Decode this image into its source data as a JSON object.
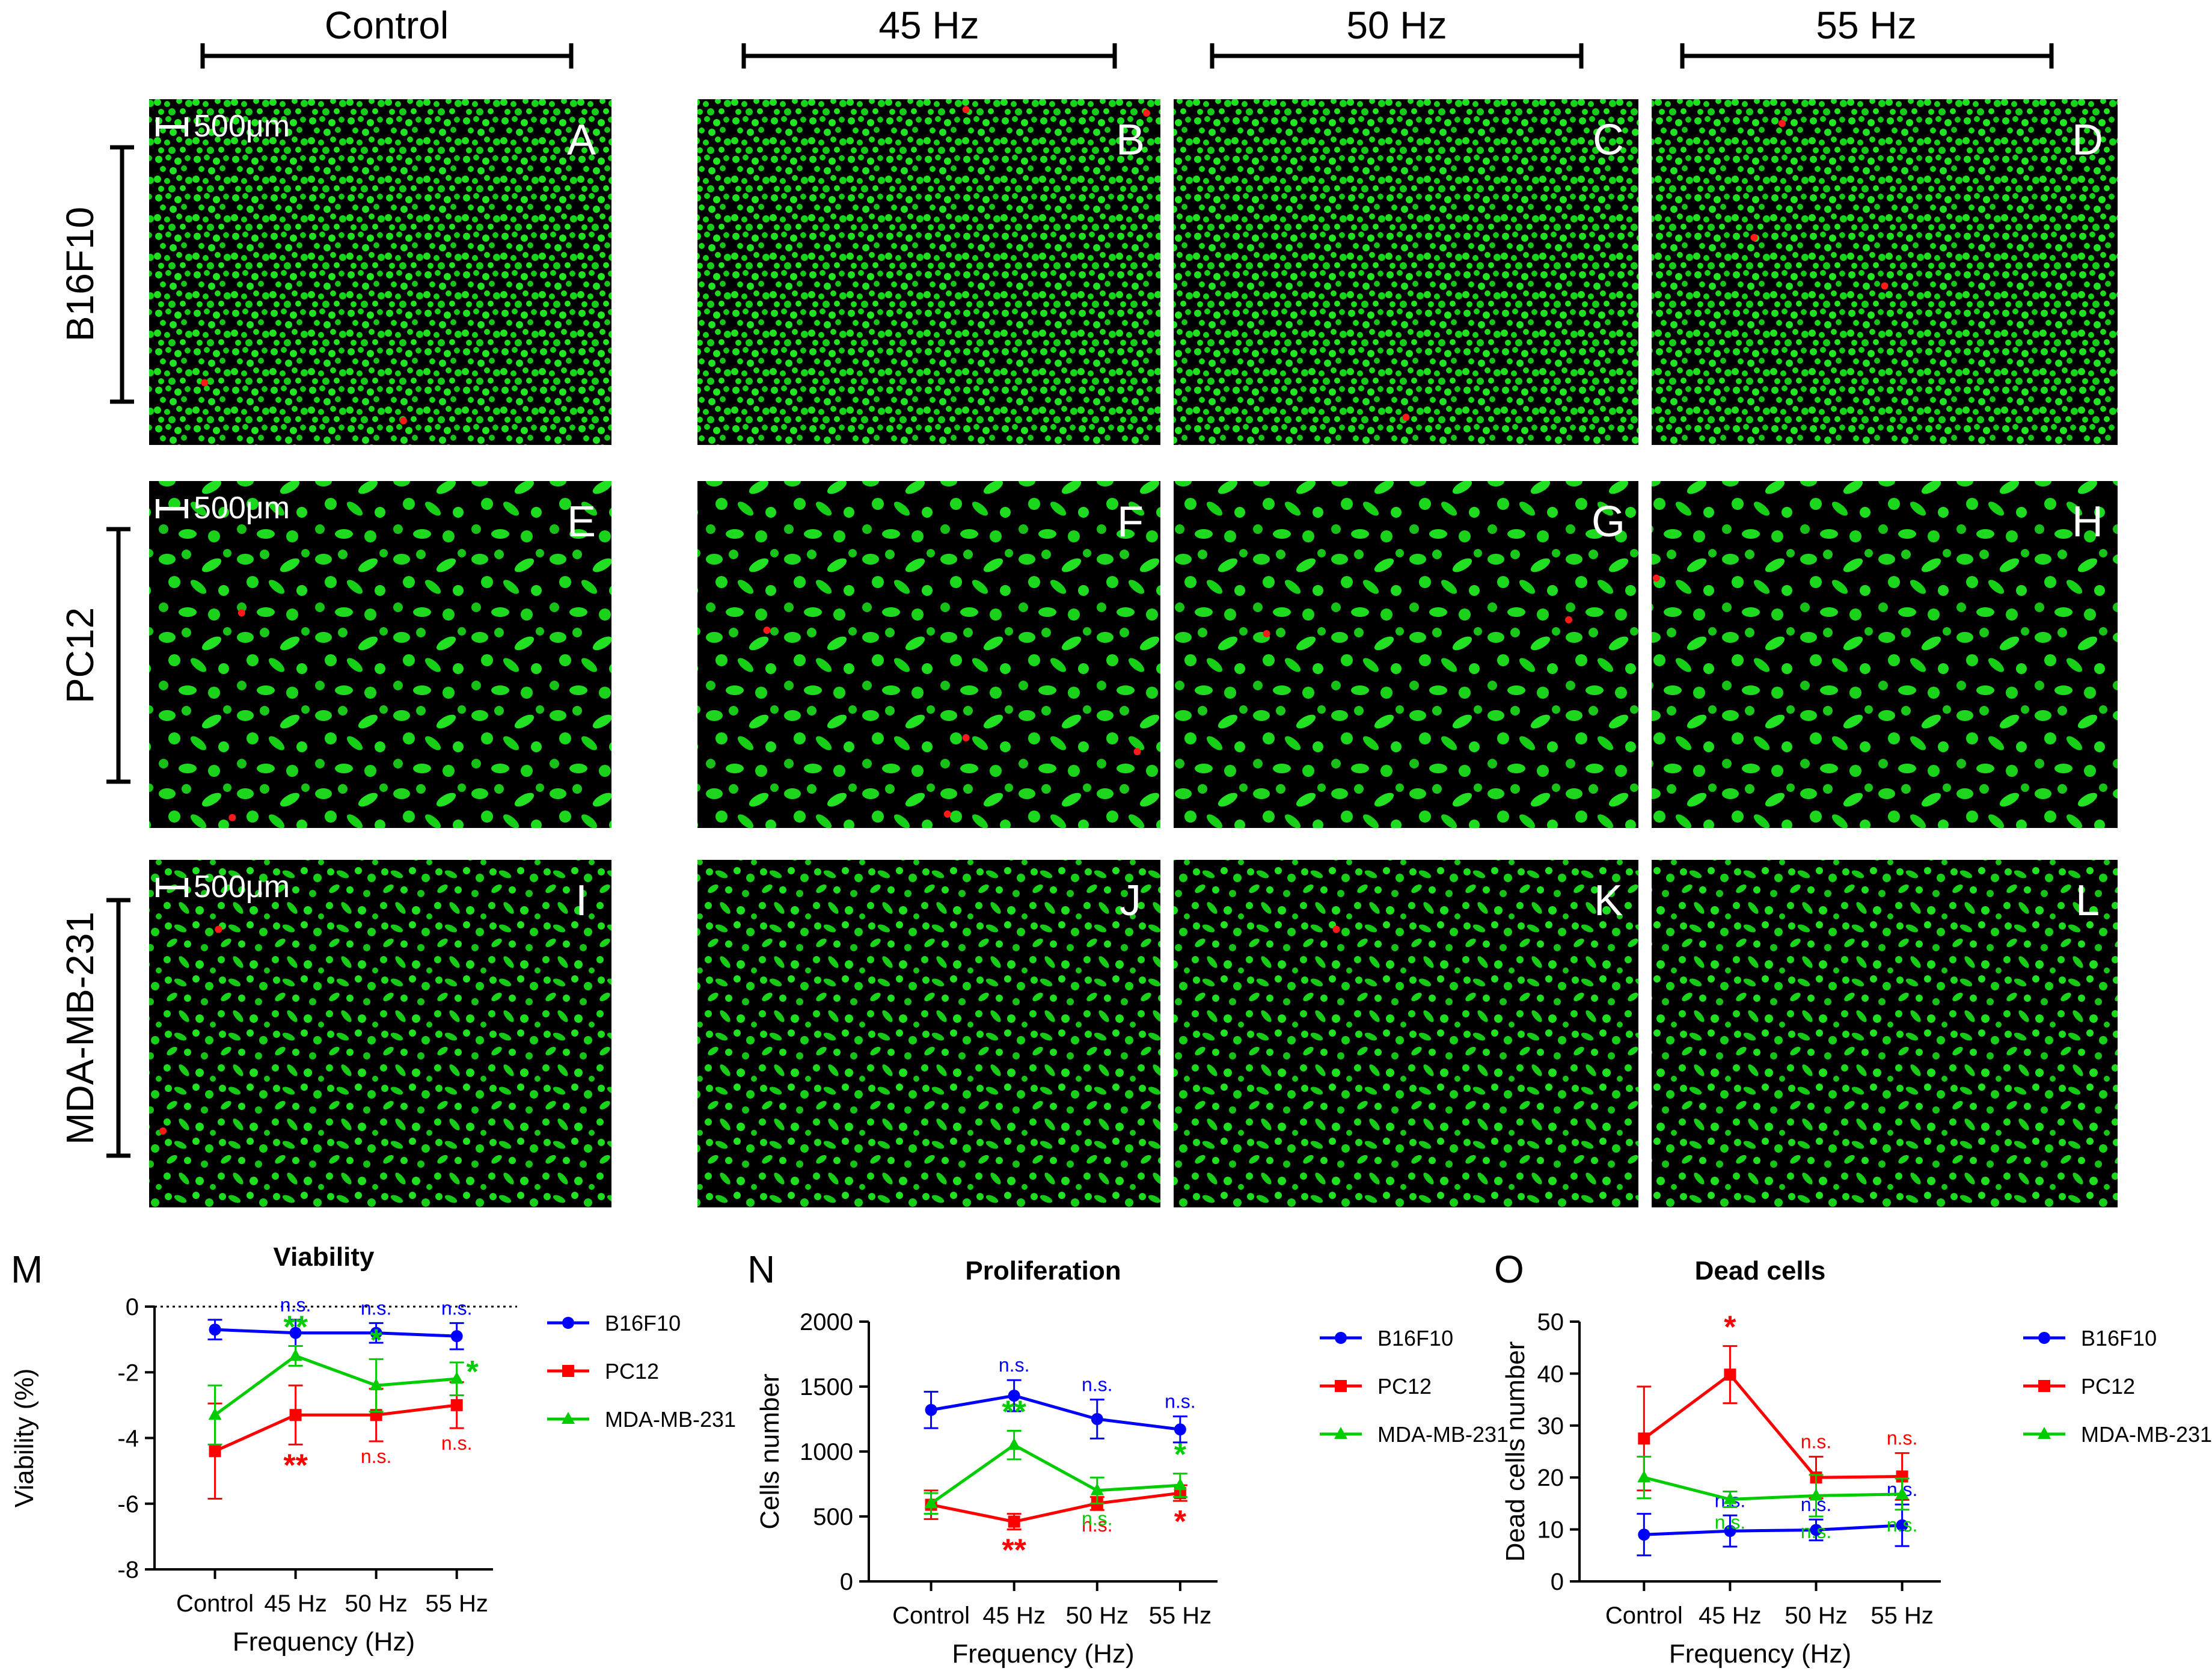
{
  "columns": [
    {
      "label": "Control"
    },
    {
      "label": "45 Hz"
    },
    {
      "label": "50 Hz"
    },
    {
      "label": "55 Hz"
    }
  ],
  "rows": [
    {
      "label": "B16F10"
    },
    {
      "label": "PC12"
    },
    {
      "label": "MDA-MB-231"
    }
  ],
  "scale_bar_label": "500μm",
  "panel_letters": [
    "A",
    "B",
    "C",
    "D",
    "E",
    "F",
    "G",
    "H",
    "I",
    "J",
    "K",
    "L"
  ],
  "colors": {
    "live_cell": "#19e619",
    "dead_cell": "#ff1a1a",
    "background": "#000000",
    "b16f10": "#0000ff",
    "pc12": "#ff0000",
    "mda": "#00cc00"
  },
  "chart_data": [
    {
      "panel": "M",
      "type": "line",
      "title": "Viability",
      "xlabel": "Frequency (Hz)",
      "ylabel": "Viability (%)",
      "categories": [
        "Control",
        "45 Hz",
        "50 Hz",
        "55 Hz"
      ],
      "ylim": [
        -8,
        0
      ],
      "yticks": [
        "0",
        "-2",
        "-4",
        "-6",
        "-8"
      ],
      "zero_reference_line": true,
      "series": [
        {
          "name": "B16F10",
          "color": "#0000ff",
          "marker": "circle",
          "values": [
            -0.7,
            -0.8,
            -0.8,
            -0.9
          ],
          "errors": [
            0.3,
            0.4,
            0.3,
            0.4
          ],
          "annotations": [
            "",
            "n.s.",
            "n.s.",
            "n.s."
          ]
        },
        {
          "name": "PC12",
          "color": "#ff0000",
          "marker": "square",
          "values": [
            -4.4,
            -3.3,
            -3.3,
            -3.0
          ],
          "errors": [
            1.45,
            0.9,
            0.8,
            0.7
          ],
          "annotations": [
            "",
            "**",
            "n.s.",
            "n.s."
          ]
        },
        {
          "name": "MDA-MB-231",
          "color": "#00cc00",
          "marker": "triangle",
          "values": [
            -3.3,
            -1.5,
            -2.4,
            -2.2
          ],
          "errors": [
            0.9,
            0.3,
            0.8,
            0.5
          ],
          "annotations": [
            "",
            "**",
            "*",
            "*"
          ]
        }
      ]
    },
    {
      "panel": "N",
      "type": "line",
      "title": "Proliferation",
      "xlabel": "Frequency (Hz)",
      "ylabel": "Cells number",
      "categories": [
        "Control",
        "45 Hz",
        "50 Hz",
        "55 Hz"
      ],
      "ylim": [
        0,
        2000
      ],
      "yticks": [
        "0",
        "500",
        "1000",
        "1500",
        "2000"
      ],
      "series": [
        {
          "name": "B16F10",
          "color": "#0000ff",
          "marker": "circle",
          "values": [
            1320,
            1430,
            1250,
            1170
          ],
          "errors": [
            140,
            120,
            150,
            100
          ],
          "annotations": [
            "",
            "n.s.",
            "n.s.",
            "n.s."
          ]
        },
        {
          "name": "PC12",
          "color": "#ff0000",
          "marker": "square",
          "values": [
            590,
            460,
            600,
            680
          ],
          "errors": [
            110,
            60,
            50,
            60
          ],
          "annotations": [
            "",
            "**",
            "n.s.",
            "*"
          ]
        },
        {
          "name": "MDA-MB-231",
          "color": "#00cc00",
          "marker": "triangle",
          "values": [
            600,
            1050,
            700,
            740
          ],
          "errors": [
            80,
            110,
            100,
            90
          ],
          "annotations": [
            "",
            "**",
            "n.s.",
            "*"
          ]
        }
      ]
    },
    {
      "panel": "O",
      "type": "line",
      "title": "Dead cells",
      "xlabel": "Frequency (Hz)",
      "ylabel": "Dead cells  number",
      "categories": [
        "Control",
        "45 Hz",
        "50 Hz",
        "55 Hz"
      ],
      "ylim": [
        0,
        50
      ],
      "yticks": [
        "0",
        "10",
        "20",
        "30",
        "40",
        "50"
      ],
      "series": [
        {
          "name": "B16F10",
          "color": "#0000ff",
          "marker": "circle",
          "values": [
            9,
            9.7,
            9.9,
            10.8
          ],
          "errors": [
            4,
            3,
            2,
            4
          ],
          "annotations": [
            "",
            "n.s.",
            "n.s.",
            "n.s."
          ]
        },
        {
          "name": "PC12",
          "color": "#ff0000",
          "marker": "square",
          "values": [
            27.5,
            39.8,
            20,
            20.2
          ],
          "errors": [
            10,
            5.5,
            4,
            4.5
          ],
          "annotations": [
            "",
            "*",
            "n.s.",
            "n.s."
          ]
        },
        {
          "name": "MDA-MB-231",
          "color": "#00cc00",
          "marker": "triangle",
          "values": [
            20,
            15.8,
            16.5,
            16.8
          ],
          "errors": [
            4,
            1.5,
            4,
            3
          ],
          "annotations": [
            "",
            "n.s.",
            "n.s.",
            "n.s."
          ]
        }
      ]
    }
  ]
}
